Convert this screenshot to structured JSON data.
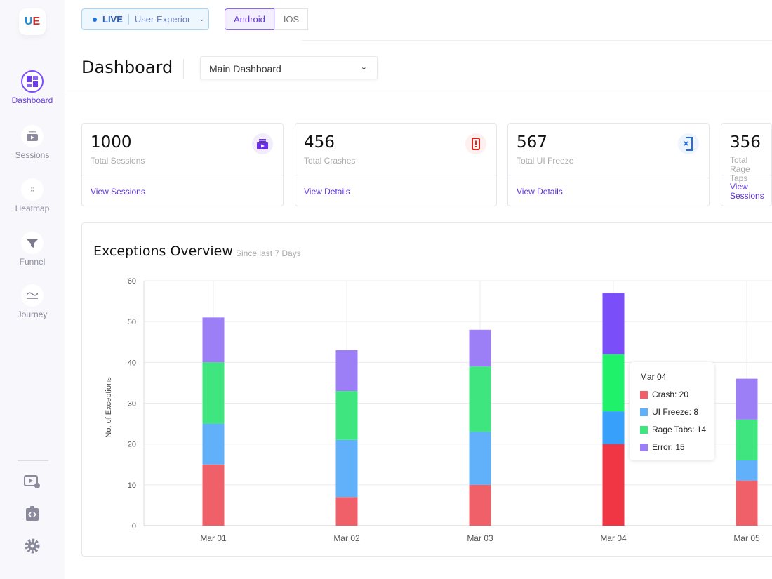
{
  "sidebar": {
    "logo": "UE",
    "items": [
      {
        "label": "Dashboard",
        "icon": "dashboard-icon",
        "active": true
      },
      {
        "label": "Sessions",
        "icon": "sessions-icon"
      },
      {
        "label": "Heatmap",
        "icon": "heatmap-icon"
      },
      {
        "label": "Funnel",
        "icon": "funnel-icon"
      },
      {
        "label": "Journey",
        "icon": "journey-icon"
      }
    ],
    "bottom_icons": [
      "session-settings-icon",
      "developer-icon",
      "gear-icon"
    ]
  },
  "header": {
    "status": "LIVE",
    "app": "User Experior",
    "platforms": [
      "Android",
      "IOS"
    ],
    "active_platform": "Android"
  },
  "page": {
    "title": "Dashboard",
    "dashboard_select": "Main Dashboard"
  },
  "cards": [
    {
      "value": "1000",
      "label": "Total Sessions",
      "link": "View Sessions",
      "icon": "sessions-icon",
      "color": "#6a2ee8"
    },
    {
      "value": "456",
      "label": "Total Crashes",
      "link": "View Details",
      "icon": "crash-icon",
      "color": "#d9261c"
    },
    {
      "value": "567",
      "label": "Total UI Freeze",
      "link": "View Details",
      "icon": "ui-freeze-icon",
      "color": "#1f6fe0"
    },
    {
      "value": "356",
      "label": "Total Rage Taps",
      "link": "View Sessions",
      "icon": "rage-icon",
      "color": "#6a2ee8"
    }
  ],
  "chart_data": {
    "type": "bar",
    "stacked": true,
    "title": "Exceptions Overview",
    "subtitle": "Since last 7 Days",
    "ylabel": "No. of Exceptions",
    "ylim": [
      0,
      60
    ],
    "yticks": [
      0,
      10,
      20,
      30,
      40,
      50,
      60
    ],
    "grid": true,
    "categories": [
      "Mar 01",
      "Mar 02",
      "Mar 03",
      "Mar 04",
      "Mar 05"
    ],
    "series": [
      {
        "name": "Crash",
        "color": "#ef6069",
        "values": [
          15,
          7,
          10,
          20,
          11
        ]
      },
      {
        "name": "UI Freeze",
        "color": "#60b0fa",
        "values": [
          10,
          14,
          13,
          8,
          5
        ]
      },
      {
        "name": "Rage Tabs",
        "color": "#3fe67f",
        "values": [
          15,
          12,
          16,
          14,
          10
        ]
      },
      {
        "name": "Error",
        "color": "#9c7ff7",
        "values": [
          11,
          10,
          9,
          15,
          10
        ]
      }
    ],
    "tooltip": {
      "category": "Mar 04",
      "rows": [
        "Crash: 20",
        "UI Freeze: 8",
        "Rage Tabs: 14",
        "Error: 15"
      ]
    }
  }
}
